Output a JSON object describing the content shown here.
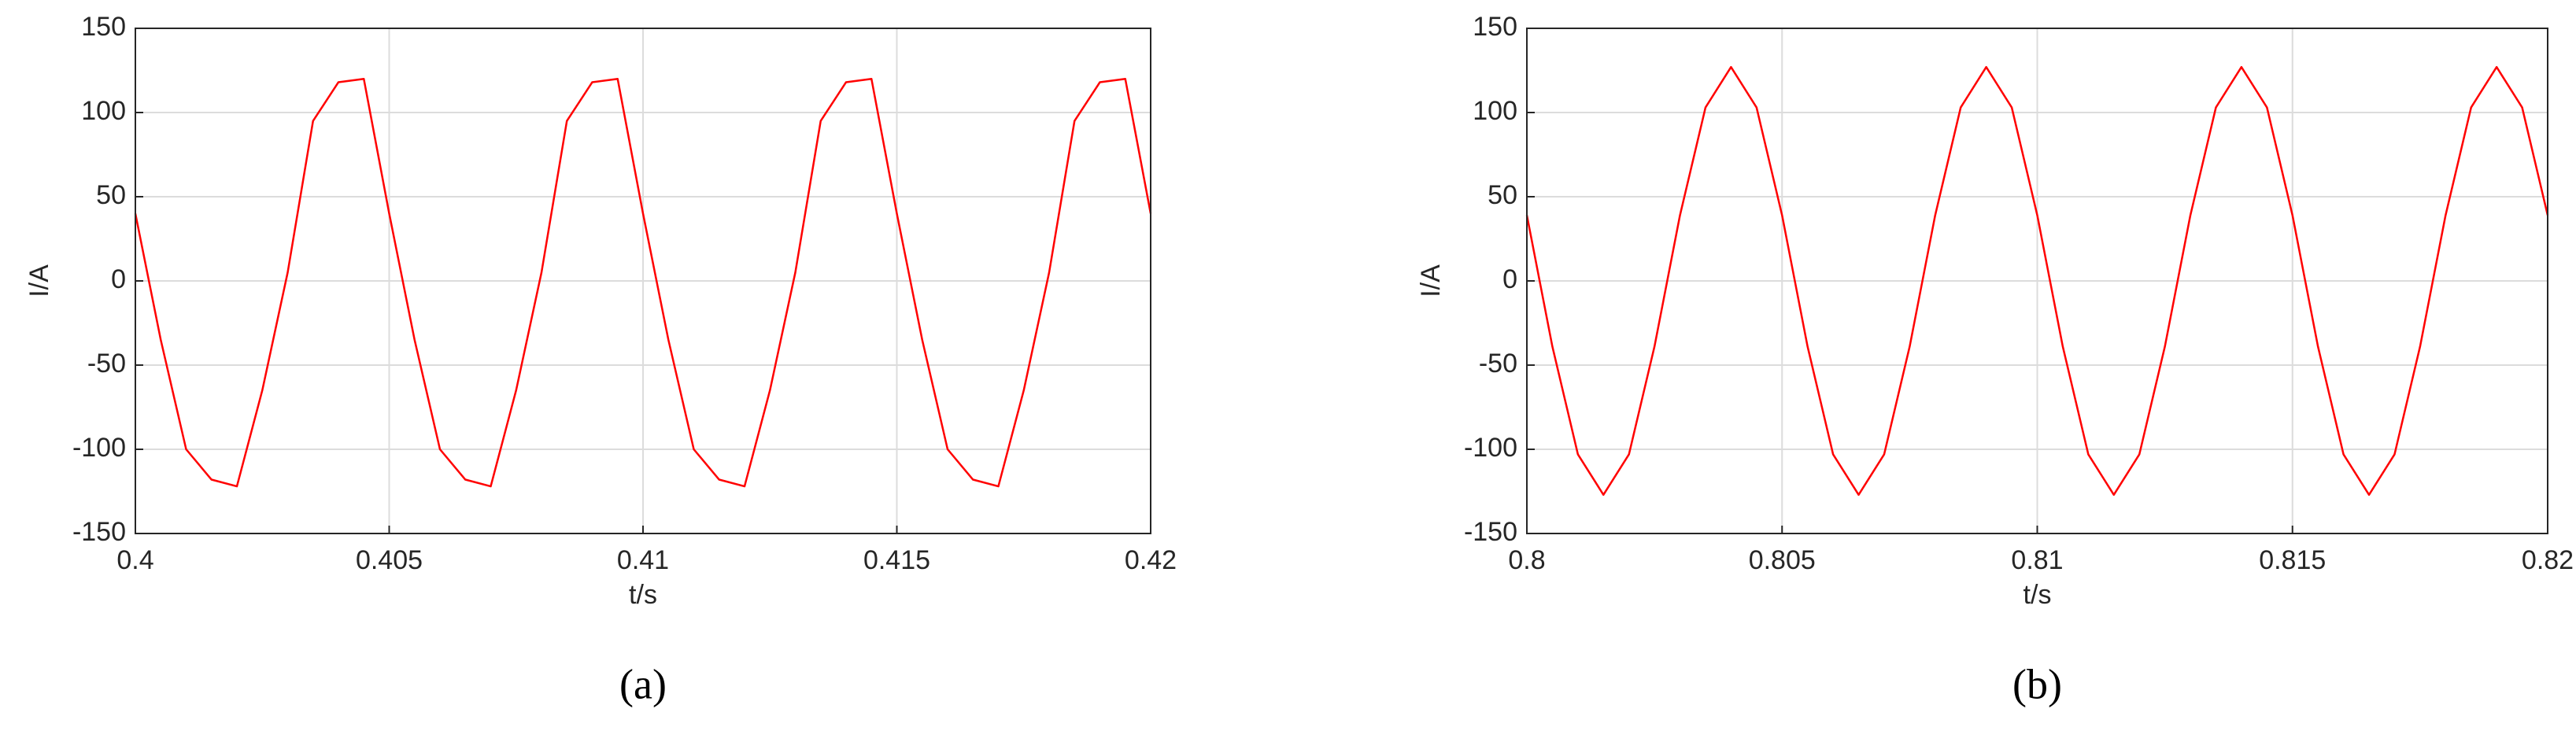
{
  "chart_data": [
    {
      "type": "line",
      "title": "(a)",
      "xlabel": "t/s",
      "ylabel": "I/A",
      "x": [
        0.4,
        0.4005,
        0.401,
        0.4015,
        0.402,
        0.4025,
        0.403,
        0.4035,
        0.404,
        0.4045,
        0.405,
        0.4055,
        0.406,
        0.4065,
        0.407,
        0.4075,
        0.408,
        0.4085,
        0.409,
        0.4095,
        0.41,
        0.4105,
        0.411,
        0.4115,
        0.412,
        0.4125,
        0.413,
        0.4135,
        0.414,
        0.4145,
        0.415,
        0.4155,
        0.416,
        0.4165,
        0.417,
        0.4175,
        0.418,
        0.4185,
        0.419,
        0.4195,
        0.42
      ],
      "series": [
        {
          "color": "#ff0000",
          "values": [
            40,
            -35,
            -100,
            -118,
            -122,
            -65,
            5,
            95,
            118,
            120,
            40,
            -35,
            -100,
            -118,
            -122,
            -65,
            5,
            95,
            118,
            120,
            40,
            -35,
            -100,
            -118,
            -122,
            -65,
            5,
            95,
            118,
            120,
            40,
            -35,
            -100,
            -118,
            -122,
            -65,
            5,
            95,
            118,
            120,
            40
          ]
        }
      ],
      "xlim": [
        0.4,
        0.42
      ],
      "xticks": [
        0.4,
        0.405,
        0.41,
        0.415,
        0.42
      ],
      "ylim": [
        -150,
        150
      ],
      "yticks": [
        -150,
        -100,
        -50,
        0,
        50,
        100,
        150
      ],
      "grid": true
    },
    {
      "type": "line",
      "title": "(b)",
      "xlabel": "t/s",
      "ylabel": "I/A",
      "x": [
        0.8,
        0.8005,
        0.801,
        0.8015,
        0.802,
        0.8025,
        0.803,
        0.8035,
        0.804,
        0.8045,
        0.805,
        0.8055,
        0.806,
        0.8065,
        0.807,
        0.8075,
        0.808,
        0.8085,
        0.809,
        0.8095,
        0.81,
        0.8105,
        0.811,
        0.8115,
        0.812,
        0.8125,
        0.813,
        0.8135,
        0.814,
        0.8145,
        0.815,
        0.8155,
        0.816,
        0.8165,
        0.817,
        0.8175,
        0.818,
        0.8185,
        0.819,
        0.8195,
        0.82
      ],
      "series": [
        {
          "color": "#ff0000",
          "values": [
            39,
            -39,
            -103,
            -127,
            -103,
            -39,
            39,
            103,
            127,
            103,
            39,
            -39,
            -103,
            -127,
            -103,
            -39,
            39,
            103,
            127,
            103,
            39,
            -39,
            -103,
            -127,
            -103,
            -39,
            39,
            103,
            127,
            103,
            39,
            -39,
            -103,
            -127,
            -103,
            -39,
            39,
            103,
            127,
            103,
            39
          ]
        }
      ],
      "xlim": [
        0.8,
        0.82
      ],
      "xticks": [
        0.8,
        0.805,
        0.81,
        0.815,
        0.82
      ],
      "ylim": [
        -150,
        150
      ],
      "yticks": [
        -150,
        -100,
        -50,
        0,
        50,
        100,
        150
      ],
      "grid": true
    }
  ]
}
